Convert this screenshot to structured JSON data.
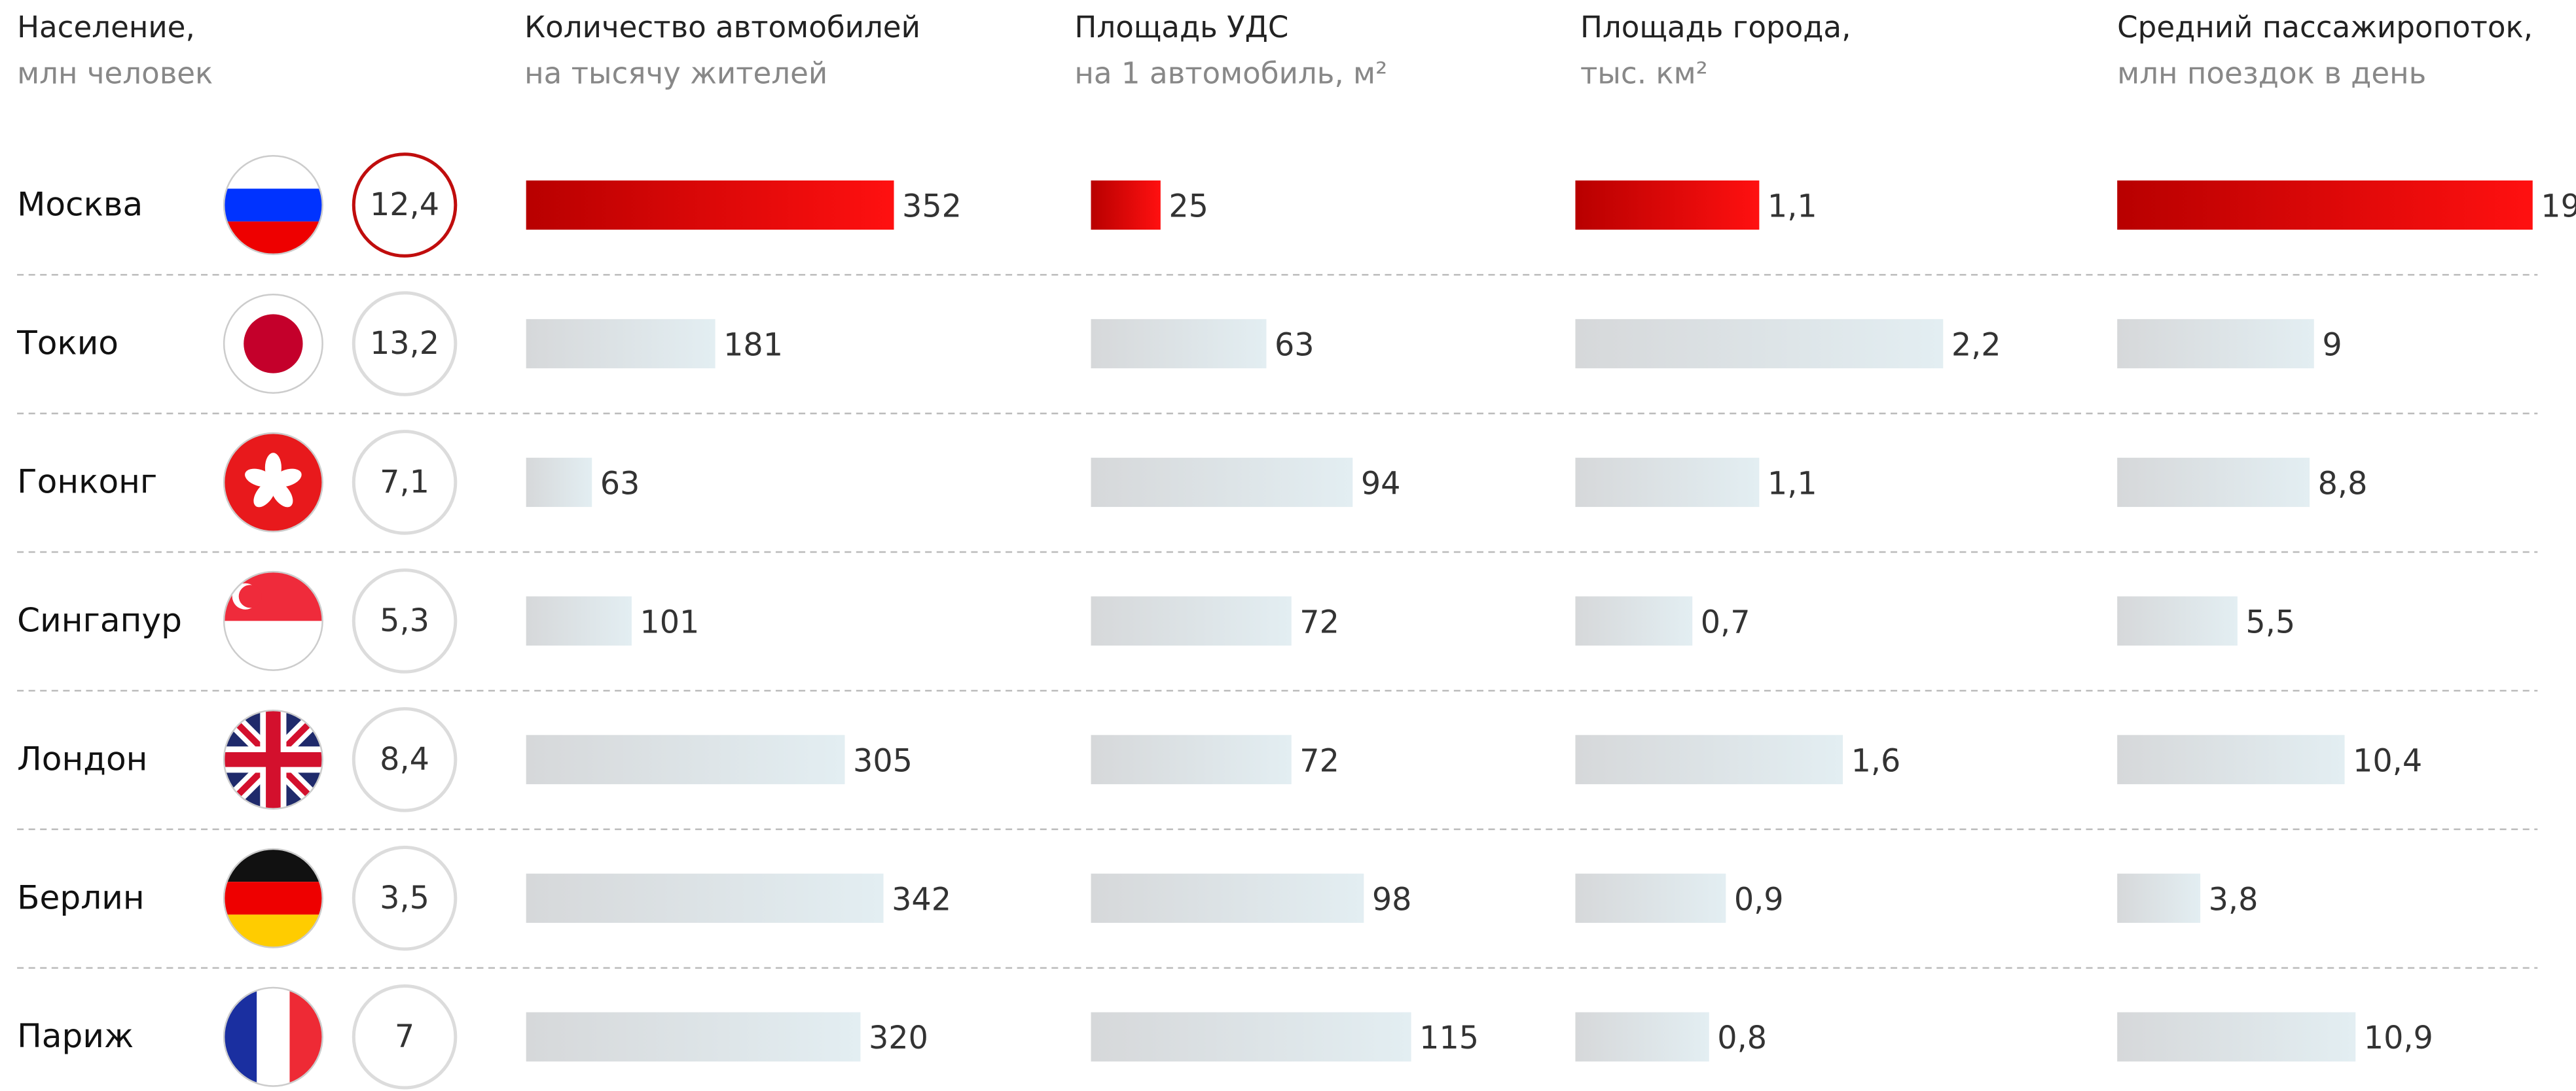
{
  "chart_data": [
    {
      "type": "circle",
      "title": "Население,",
      "subtitle": "млн человек",
      "categories": [
        "Москва",
        "Токио",
        "Гонконг",
        "Сингапур",
        "Лондон",
        "Берлин",
        "Париж"
      ],
      "values": [
        12.4,
        13.2,
        7.1,
        5.3,
        8.4,
        3.5,
        7
      ],
      "value_labels": [
        "12,4",
        "13,2",
        "7,1",
        "5,3",
        "8,4",
        "3,5",
        "7"
      ],
      "highlight": "Москва",
      "highlight_color": "#c00d0d",
      "color": "#dcdcdc"
    },
    {
      "type": "bar",
      "title": "Количество автомобилей",
      "subtitle": "на тысячу жителей",
      "values": [
        352,
        181,
        63,
        101,
        305,
        342,
        320
      ],
      "highlight": "Москва",
      "highlight_color": "#e30613",
      "color": "#dfe6ea"
    },
    {
      "type": "bar",
      "title": "Площадь УДС",
      "subtitle": "на 1 автомобиль,  м²",
      "values": [
        25,
        63,
        94,
        72,
        72,
        98,
        115
      ],
      "highlight": "Москва",
      "highlight_color": "#e30613",
      "color": "#dfe6ea"
    },
    {
      "type": "bar",
      "title": "Площадь города,",
      "subtitle": "тыс. км²",
      "values": [
        1.1,
        2.2,
        1.1,
        0.7,
        1.6,
        0.9,
        0.8
      ],
      "value_labels": [
        "1,1",
        "2,2",
        "1,1",
        "0,7",
        "1,6",
        "0,9",
        "0,8"
      ],
      "highlight": "Москва",
      "highlight_color": "#e30613",
      "color": "#dfe6ea"
    },
    {
      "type": "bar",
      "title": "Средний пассажиропоток,",
      "subtitle": "млн поездок в день",
      "values": [
        19,
        9,
        8.8,
        5.5,
        10.4,
        3.8,
        10.9
      ],
      "value_labels": [
        "19",
        "9",
        "8,8",
        "5,5",
        "10,4",
        "3,8",
        "10,9"
      ],
      "highlight": "Москва",
      "highlight_color": "#e30613",
      "color": "#dfe6ea"
    }
  ]
}
